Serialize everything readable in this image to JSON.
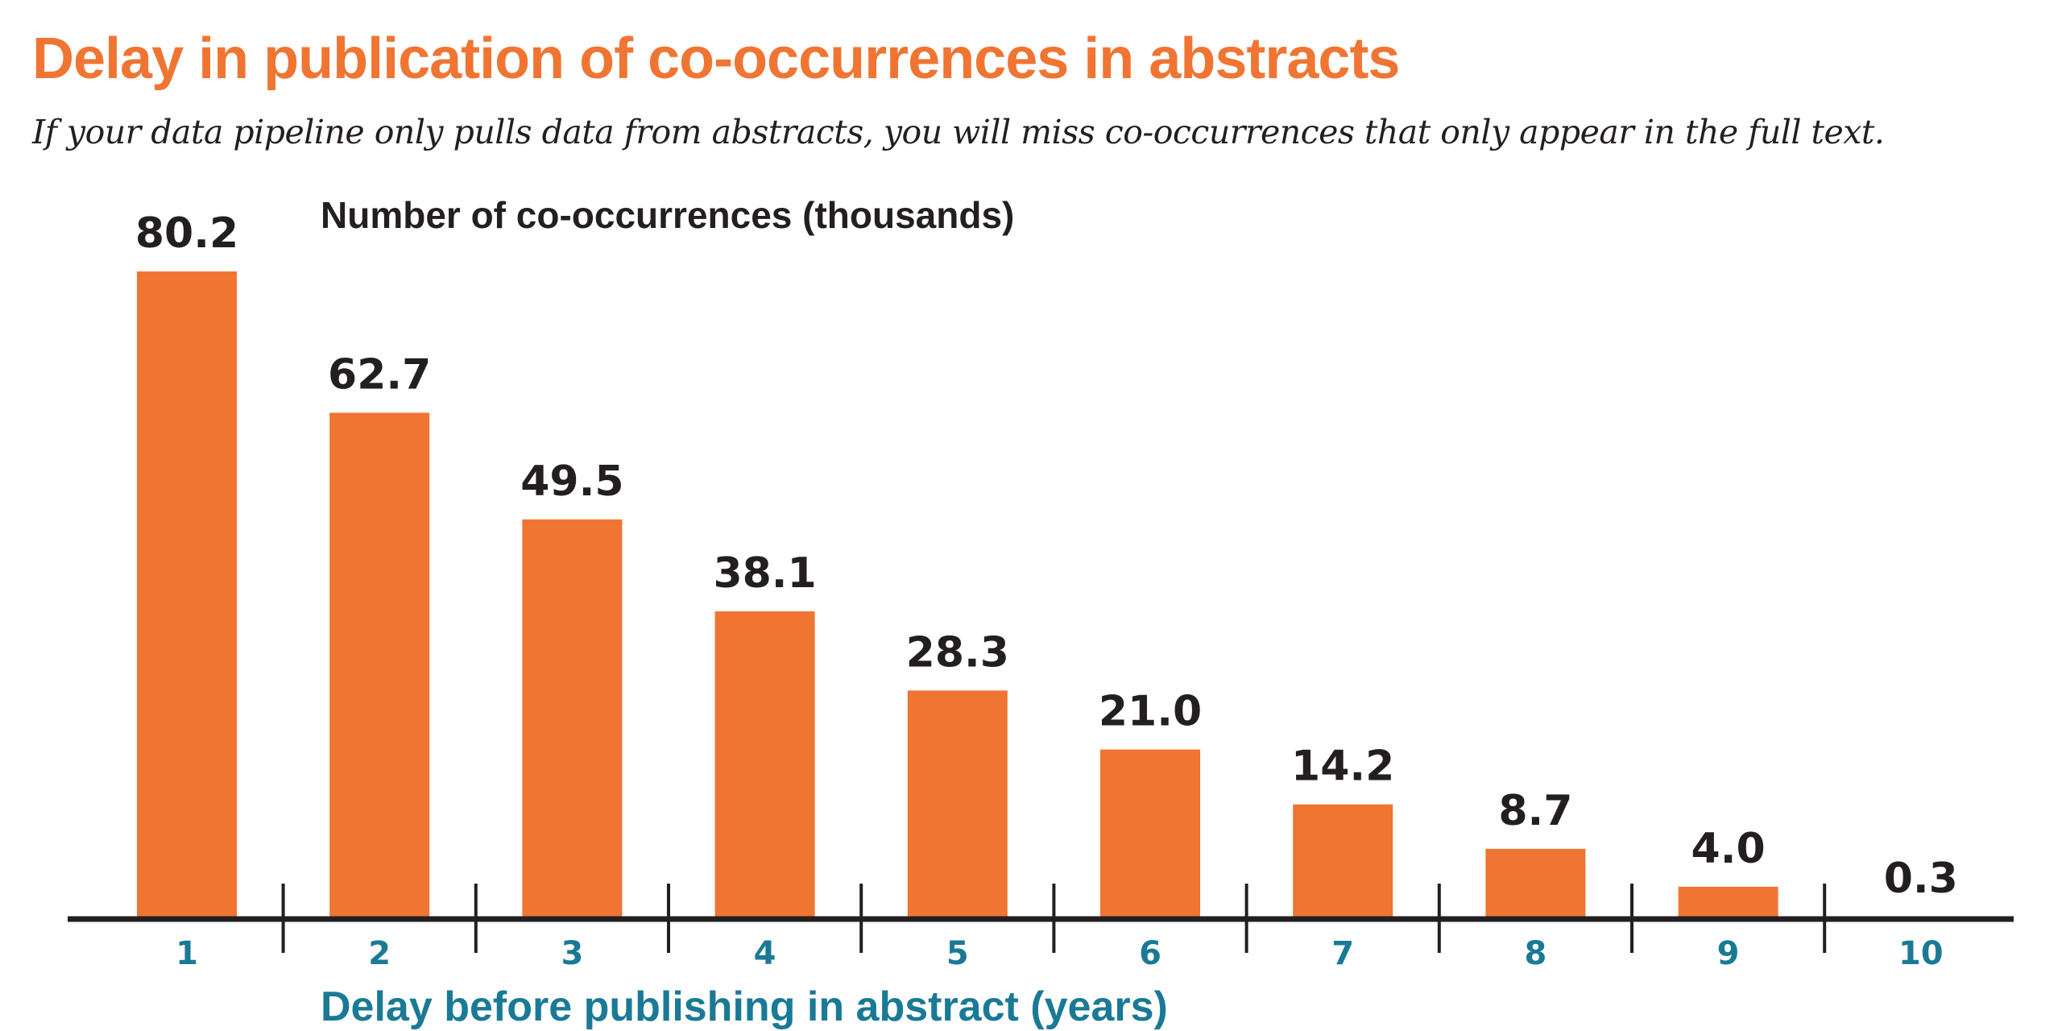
{
  "header": {
    "title": "Delay in publication of co-occurrences in abstracts",
    "subtitle": "If your data pipeline only pulls data from abstracts, you will miss co-occurrences that only appear in the full text."
  },
  "colors": {
    "title": "#F07533",
    "bar": "#F07533",
    "axis": "#231F20",
    "value_label": "#231F20",
    "tick_label": "#1A7A96",
    "xlabel": "#1A7A96"
  },
  "chart_data": {
    "type": "bar",
    "title": "Delay in publication of co-occurrences in abstracts",
    "subtitle": "If your data pipeline only pulls data from abstracts, you will miss co-occurrences that only appear in the full text.",
    "xlabel": "Delay before publishing in abstract (years)",
    "ylabel": "Number of co-occurrences (thousands)",
    "categories": [
      "1",
      "2",
      "3",
      "4",
      "5",
      "6",
      "7",
      "8",
      "9",
      "10"
    ],
    "values": [
      80.2,
      62.7,
      49.5,
      38.1,
      28.3,
      21.0,
      14.2,
      8.7,
      4.0,
      0.3
    ],
    "value_labels": [
      "80.2",
      "62.7",
      "49.5",
      "38.1",
      "28.3",
      "21.0",
      "14.2",
      "8.7",
      "4.0",
      "0.3"
    ],
    "ylim": [
      0,
      80.2
    ],
    "grid": false,
    "legend": "none",
    "y_axis_shown": false
  }
}
